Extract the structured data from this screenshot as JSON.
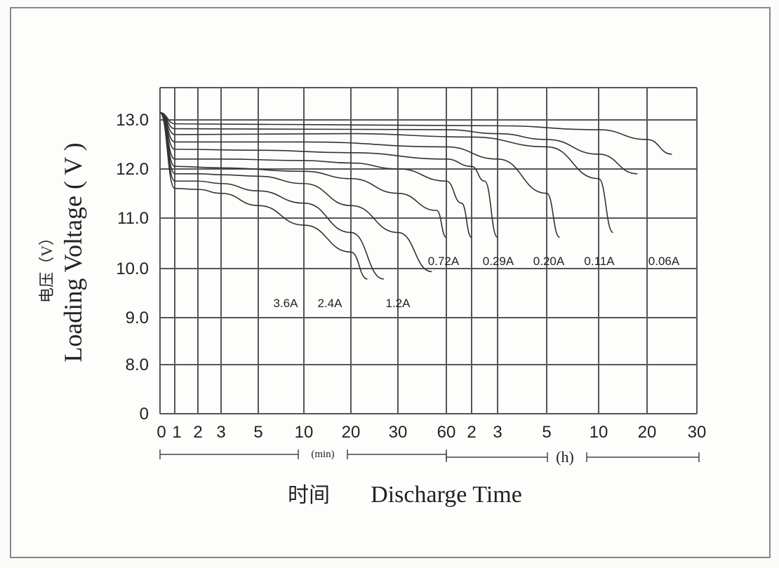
{
  "chart_data": {
    "type": "line",
    "ylabel": "Loading Voltage ( V )",
    "ylabel_cn": "电压（V）",
    "xlabel": "Discharge Time",
    "xlabel_cn": "时间",
    "y_ticks": [
      "0",
      "8.0",
      "9.0",
      "10.0",
      "11.0",
      "12.0",
      "13.0"
    ],
    "x_ticks": [
      "0",
      "1",
      "2",
      "3",
      "5",
      "10",
      "20",
      "30",
      "60",
      "2",
      "3",
      "5",
      "10",
      "20",
      "30"
    ],
    "unit_min": "(min)",
    "unit_h": "(h)",
    "grid": true,
    "series": [
      {
        "name": "3.6A",
        "points": [
          [
            0,
            13.15
          ],
          [
            1,
            11.6
          ],
          [
            2,
            11.58
          ],
          [
            3,
            11.5
          ],
          [
            4,
            11.25
          ],
          [
            5,
            10.85
          ],
          [
            6,
            10.3
          ],
          [
            6.35,
            9.75
          ]
        ]
      },
      {
        "name": "2.4A",
        "points": [
          [
            0,
            13.15
          ],
          [
            1,
            11.75
          ],
          [
            2,
            11.75
          ],
          [
            3,
            11.7
          ],
          [
            4,
            11.55
          ],
          [
            5,
            11.3
          ],
          [
            6,
            10.7
          ],
          [
            6.7,
            9.75
          ]
        ]
      },
      {
        "name": "1.2A",
        "points": [
          [
            0,
            13.15
          ],
          [
            1,
            11.9
          ],
          [
            2,
            11.9
          ],
          [
            3,
            11.88
          ],
          [
            4,
            11.85
          ],
          [
            5,
            11.7
          ],
          [
            6,
            11.25
          ],
          [
            7,
            10.7
          ],
          [
            7.7,
            9.9
          ]
        ]
      },
      {
        "name": "0.72A",
        "points": [
          [
            0,
            13.15
          ],
          [
            1,
            12.05
          ],
          [
            3,
            12.02
          ],
          [
            5,
            11.95
          ],
          [
            6,
            11.8
          ],
          [
            7,
            11.5
          ],
          [
            7.8,
            11.15
          ],
          [
            8,
            10.6
          ]
        ]
      },
      {
        "name": "0.29A",
        "points": [
          [
            0,
            13.15
          ],
          [
            1,
            12.2
          ],
          [
            3,
            12.2
          ],
          [
            5,
            12.17
          ],
          [
            6,
            12.12
          ],
          [
            7,
            12.0
          ],
          [
            8,
            11.75
          ],
          [
            8.6,
            11.3
          ],
          [
            9,
            10.6
          ]
        ]
      },
      {
        "name": "0.20A",
        "points": [
          [
            0,
            13.15
          ],
          [
            1,
            12.4
          ],
          [
            4,
            12.38
          ],
          [
            6,
            12.33
          ],
          [
            8,
            12.2
          ],
          [
            9,
            12.05
          ],
          [
            9.5,
            11.75
          ],
          [
            10,
            10.6
          ]
        ]
      },
      {
        "name": "0.11A",
        "points": [
          [
            0,
            13.15
          ],
          [
            1,
            12.55
          ],
          [
            5,
            12.55
          ],
          [
            8,
            12.45
          ],
          [
            10,
            12.2
          ],
          [
            11,
            11.5
          ],
          [
            11.25,
            10.6
          ]
        ]
      },
      {
        "name": "0.06A",
        "points": [
          [
            0,
            13.15
          ],
          [
            1,
            12.7
          ],
          [
            6,
            12.72
          ],
          [
            9,
            12.65
          ],
          [
            11,
            12.45
          ],
          [
            12,
            11.8
          ],
          [
            12.3,
            10.7
          ]
        ]
      },
      {
        "name": "",
        "points": [
          [
            0,
            13.15
          ],
          [
            1,
            12.82
          ],
          [
            8,
            12.8
          ],
          [
            10,
            12.72
          ],
          [
            11,
            12.6
          ],
          [
            12,
            12.3
          ],
          [
            12.8,
            11.9
          ]
        ]
      },
      {
        "name": "",
        "points": [
          [
            0,
            13.15
          ],
          [
            1,
            12.92
          ],
          [
            10,
            12.88
          ],
          [
            12,
            12.8
          ],
          [
            13,
            12.6
          ],
          [
            13.5,
            12.3
          ]
        ]
      }
    ]
  }
}
